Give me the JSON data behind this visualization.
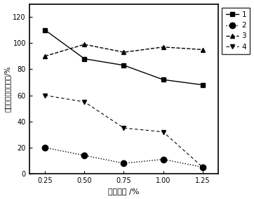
{
  "x": [
    0.25,
    0.5,
    0.75,
    1.0,
    1.25
  ],
  "series1": [
    110,
    88,
    83,
    72,
    68
  ],
  "series2": [
    20,
    14,
    8,
    11,
    5
  ],
  "series3": [
    90,
    99,
    93,
    97,
    95
  ],
  "series4": [
    60,
    55,
    35,
    32,
    5
  ],
  "xlabel": "材料浓度 /%",
  "ylabel": "乳酸氧化酶相对活性/%",
  "xlim": [
    0.15,
    1.35
  ],
  "ylim": [
    0,
    130
  ],
  "yticks": [
    0,
    20,
    40,
    60,
    80,
    100,
    120
  ],
  "xticks": [
    0.25,
    0.5,
    0.75,
    1.0,
    1.25
  ],
  "legend_labels": [
    "1",
    "2",
    "3",
    "4"
  ],
  "background_color": "#ffffff",
  "line_color": "#000000"
}
